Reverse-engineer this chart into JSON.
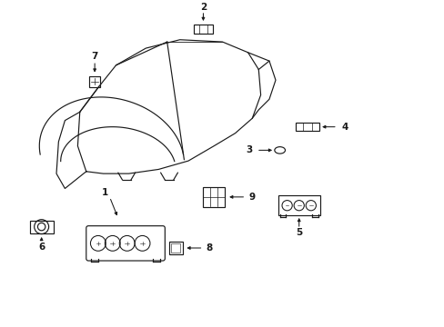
{
  "bg_color": "#ffffff",
  "line_color": "#1a1a1a",
  "lw": 0.85
}
